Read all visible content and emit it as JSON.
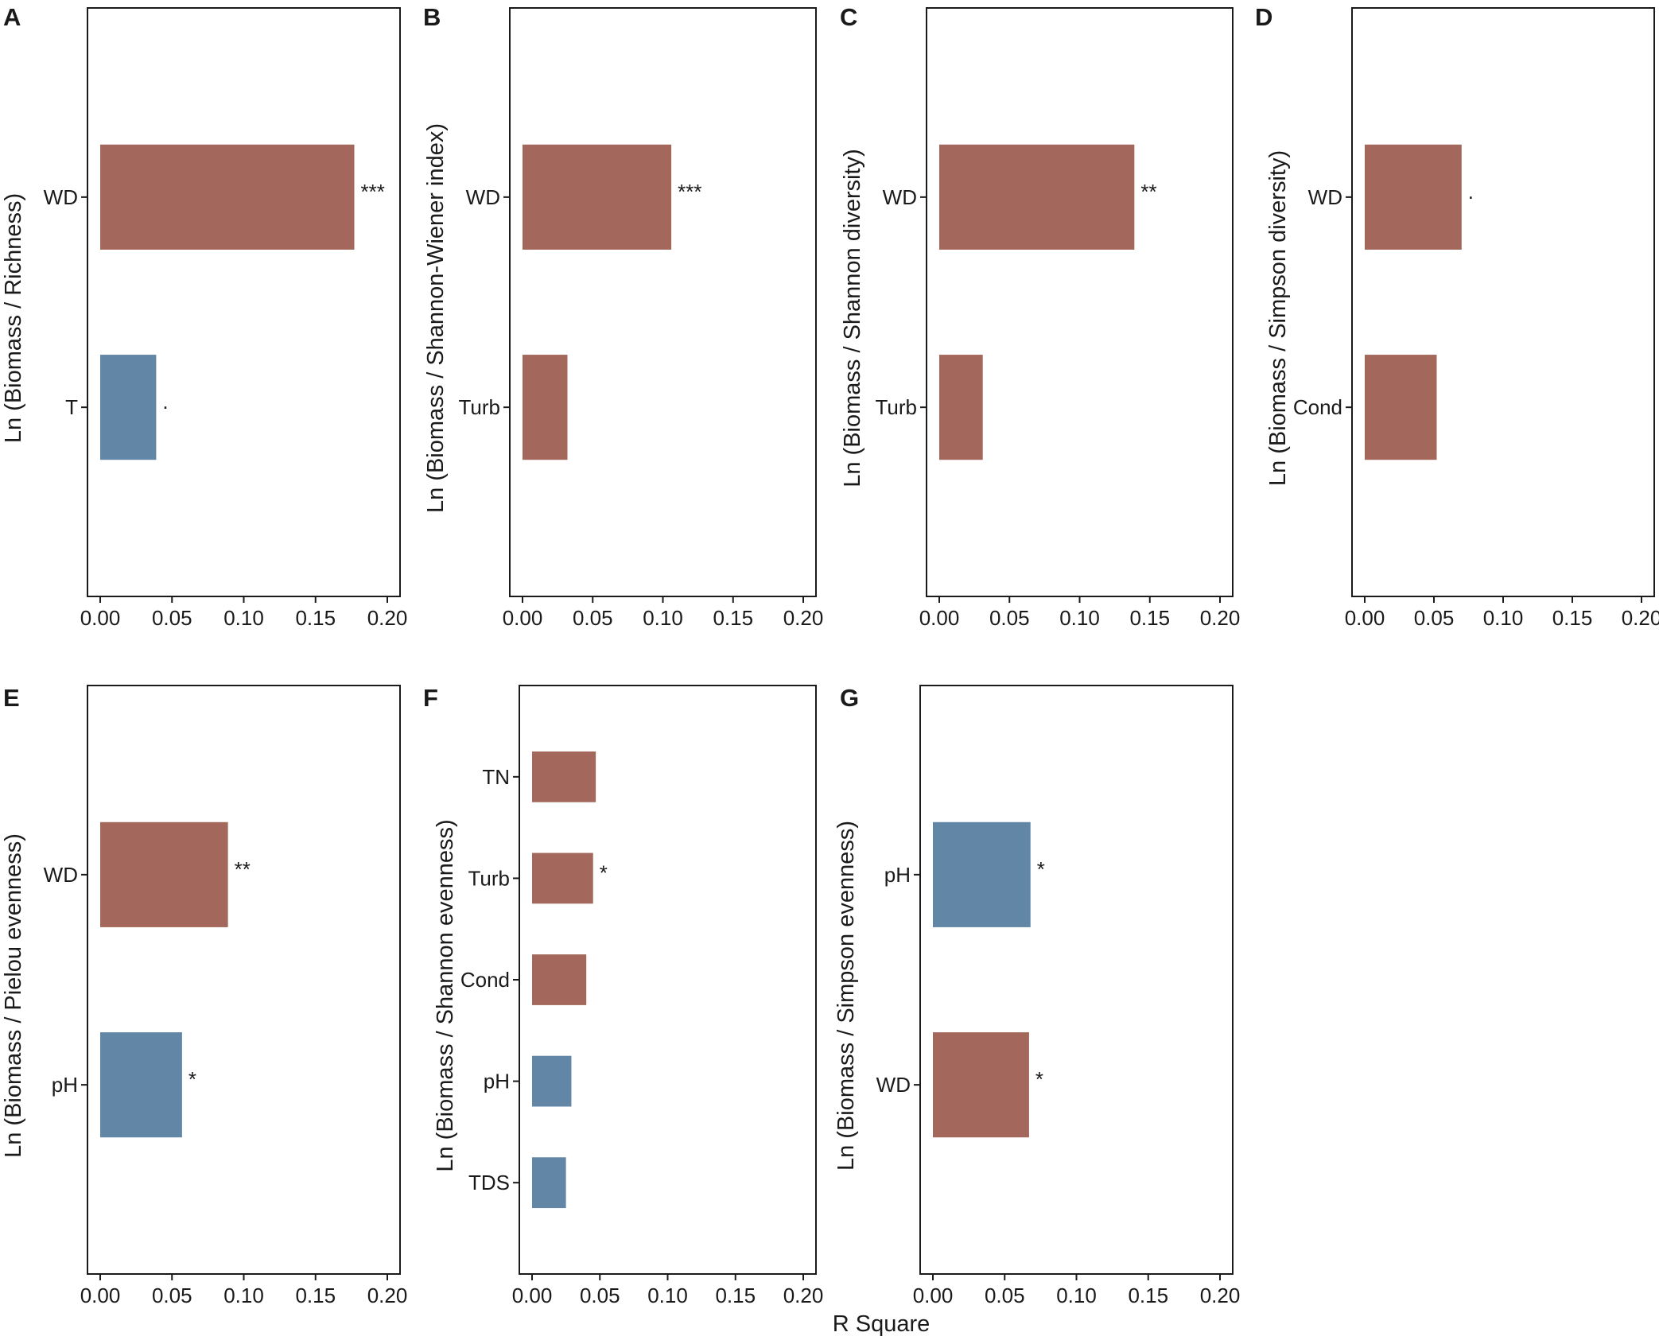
{
  "colors": {
    "positive": "#a3685b",
    "negative": "#6186a6",
    "axis": "#1a1a1a"
  },
  "x_axis_label": "R Square",
  "chart_data": [
    {
      "panel": "A",
      "type": "bar",
      "orientation": "horizontal",
      "ylabel": "Ln (Biomass / Richness)",
      "xlabel": "R Square",
      "xlim": [
        0,
        0.2
      ],
      "ticks": [
        "0.00",
        "0.05",
        "0.10",
        "0.15",
        "0.20"
      ],
      "bars": [
        {
          "category": "WD",
          "value": 0.177,
          "significance": "***",
          "color": "#a3685b"
        },
        {
          "category": "T",
          "value": 0.039,
          "significance": ".",
          "color": "#6186a6"
        }
      ]
    },
    {
      "panel": "B",
      "type": "bar",
      "orientation": "horizontal",
      "ylabel": "Ln (Biomass / Shannon-Wiener index)",
      "xlabel": "R Square",
      "xlim": [
        0,
        0.2
      ],
      "ticks": [
        "0.00",
        "0.05",
        "0.10",
        "0.15",
        "0.20"
      ],
      "bars": [
        {
          "category": "WD",
          "value": 0.106,
          "significance": "***",
          "color": "#a3685b"
        },
        {
          "category": "Turb",
          "value": 0.032,
          "significance": "",
          "color": "#a3685b"
        }
      ]
    },
    {
      "panel": "C",
      "type": "bar",
      "orientation": "horizontal",
      "ylabel": "Ln (Biomass / Shannon diversity)",
      "xlabel": "R Square",
      "xlim": [
        0,
        0.2
      ],
      "ticks": [
        "0.00",
        "0.05",
        "0.10",
        "0.15",
        "0.20"
      ],
      "bars": [
        {
          "category": "WD",
          "value": 0.139,
          "significance": "**",
          "color": "#a3685b"
        },
        {
          "category": "Turb",
          "value": 0.031,
          "significance": "",
          "color": "#a3685b"
        }
      ]
    },
    {
      "panel": "D",
      "type": "bar",
      "orientation": "horizontal",
      "ylabel": "Ln (Biomass / Simpson diversity)",
      "xlabel": "R Square",
      "xlim": [
        0,
        0.2
      ],
      "ticks": [
        "0.00",
        "0.05",
        "0.10",
        "0.15",
        "0.20"
      ],
      "bars": [
        {
          "category": "WD",
          "value": 0.07,
          "significance": ".",
          "color": "#a3685b"
        },
        {
          "category": "Cond",
          "value": 0.052,
          "significance": "",
          "color": "#a3685b"
        }
      ]
    },
    {
      "panel": "E",
      "type": "bar",
      "orientation": "horizontal",
      "ylabel": "Ln (Biomass / Pielou evenness)",
      "xlabel": "R Square",
      "xlim": [
        0,
        0.2
      ],
      "ticks": [
        "0.00",
        "0.05",
        "0.10",
        "0.15",
        "0.20"
      ],
      "bars": [
        {
          "category": "WD",
          "value": 0.089,
          "significance": "**",
          "color": "#a3685b"
        },
        {
          "category": "pH",
          "value": 0.057,
          "significance": "*",
          "color": "#6186a6"
        }
      ]
    },
    {
      "panel": "F",
      "type": "bar",
      "orientation": "horizontal",
      "ylabel": "Ln (Biomass / Shannon evenness)",
      "xlabel": "R Square",
      "xlim": [
        0,
        0.2
      ],
      "ticks": [
        "0.00",
        "0.05",
        "0.10",
        "0.15",
        "0.20"
      ],
      "bars": [
        {
          "category": "TN",
          "value": 0.047,
          "significance": "",
          "color": "#a3685b"
        },
        {
          "category": "Turb",
          "value": 0.045,
          "significance": "*",
          "color": "#a3685b"
        },
        {
          "category": "Cond",
          "value": 0.04,
          "significance": "",
          "color": "#a3685b"
        },
        {
          "category": "pH",
          "value": 0.029,
          "significance": "",
          "color": "#6186a6"
        },
        {
          "category": "TDS",
          "value": 0.025,
          "significance": "",
          "color": "#6186a6"
        }
      ]
    },
    {
      "panel": "G",
      "type": "bar",
      "orientation": "horizontal",
      "ylabel": "Ln (Biomass / Simpson evenness)",
      "xlabel": "R Square",
      "xlim": [
        0,
        0.2
      ],
      "ticks": [
        "0.00",
        "0.05",
        "0.10",
        "0.15",
        "0.20"
      ],
      "bars": [
        {
          "category": "pH",
          "value": 0.068,
          "significance": "*",
          "color": "#6186a6"
        },
        {
          "category": "WD",
          "value": 0.067,
          "significance": "*",
          "color": "#a3685b"
        }
      ]
    }
  ]
}
